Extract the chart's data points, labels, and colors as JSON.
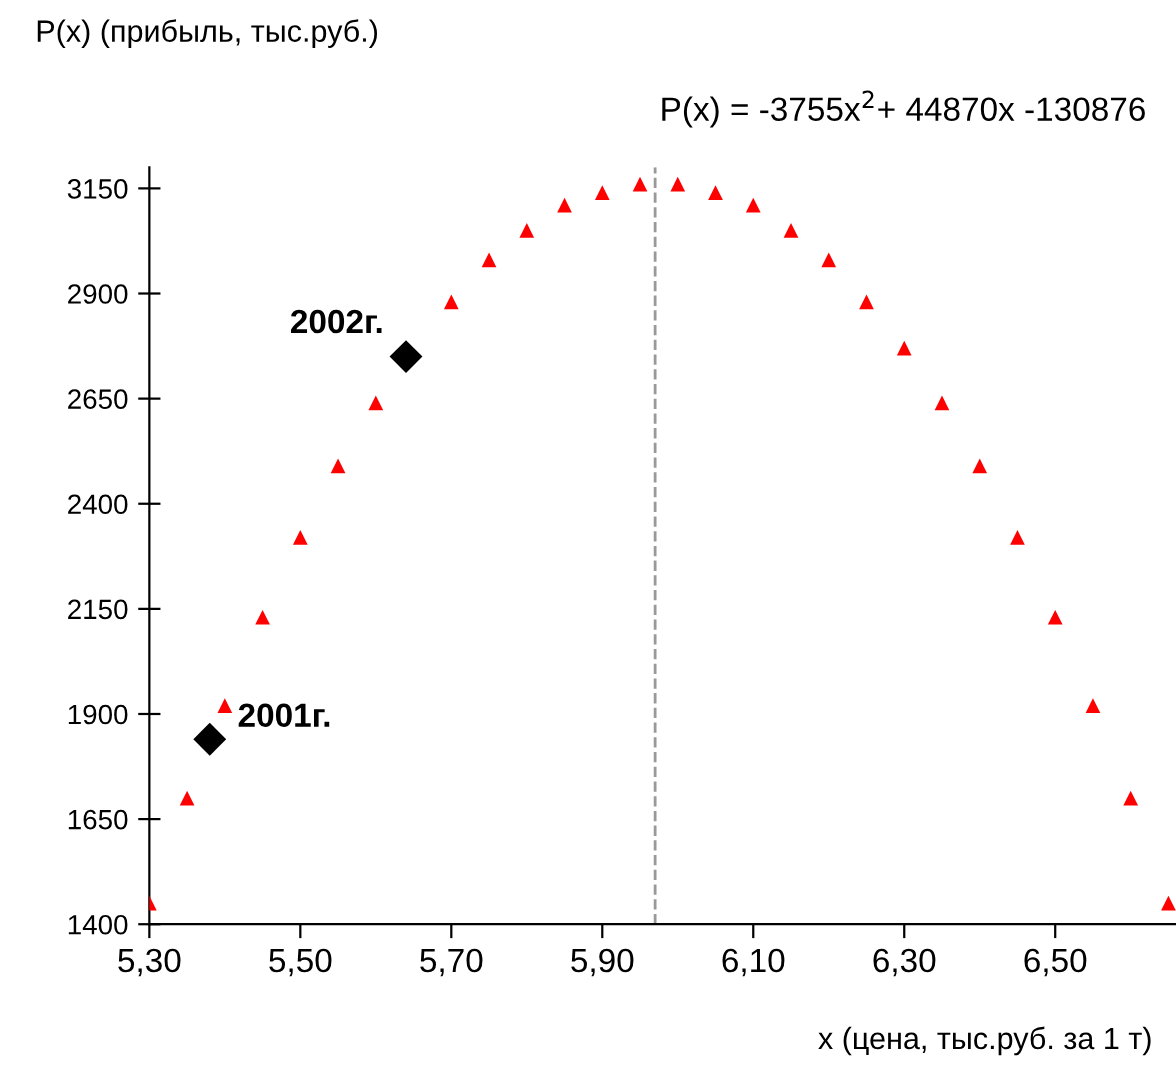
{
  "chart_data": {
    "type": "scatter",
    "ylabel": "P(x) (прибыль, тыс.руб.)",
    "subtitle": "P(x) = -3755x$^{2}$+ 44870x -130876",
    "xlabel": "x (цена, тыс.руб. за 1 т)",
    "series": [
      {
        "color": "#ff0000",
        "marker": "triangle",
        "x": [
          5.3,
          5.35,
          5.4,
          5.45,
          5.5,
          5.55,
          5.6,
          5.65,
          5.7,
          5.75,
          5.8,
          5.85,
          5.9,
          5.95,
          6.0,
          6.05,
          6.1,
          6.15,
          6.2,
          6.25,
          6.3,
          6.35,
          6.4,
          6.45,
          6.5,
          6.55,
          6.6,
          6.65
        ],
        "values": [
          1450,
          1700,
          1920,
          2130,
          2320,
          2490,
          2640,
          null,
          2880,
          2980,
          3050,
          3110,
          3140,
          3160,
          3160,
          3140,
          3110,
          3050,
          2980,
          2880,
          2770,
          2640,
          2490,
          2320,
          2130,
          1920,
          1700,
          1450
        ]
      },
      {
        "color": "#000000",
        "marker": "diamond",
        "x": [
          5.38,
          5.64
        ],
        "values": [
          1840,
          2750
        ]
      }
    ],
    "annotations": [
      {
        "text": "2001г.",
        "x": 5.38,
        "y": 1840
      },
      {
        "text": "2002г.",
        "x": 5.64,
        "y": 2750
      }
    ],
    "ref_lines": [
      {
        "axis": "x",
        "value": 5.97,
        "color": "#999999",
        "line_style": "dashed"
      }
    ],
    "xlim": [
      5.3,
      6.66
    ],
    "ylim": [
      1400,
      3200
    ],
    "xticks": [
      {
        "value": 5.3,
        "label": "5,30"
      },
      {
        "value": 5.5,
        "label": "5,50"
      },
      {
        "value": 5.7,
        "label": "5,70"
      },
      {
        "value": 5.9,
        "label": "5,90"
      },
      {
        "value": 6.1,
        "label": "6,10"
      },
      {
        "value": 6.3,
        "label": "6,30"
      },
      {
        "value": 6.5,
        "label": "6,50"
      }
    ],
    "yticks": [
      1400,
      1650,
      1900,
      2150,
      2400,
      2650,
      2900,
      3150
    ],
    "grid": false,
    "legend": false
  }
}
